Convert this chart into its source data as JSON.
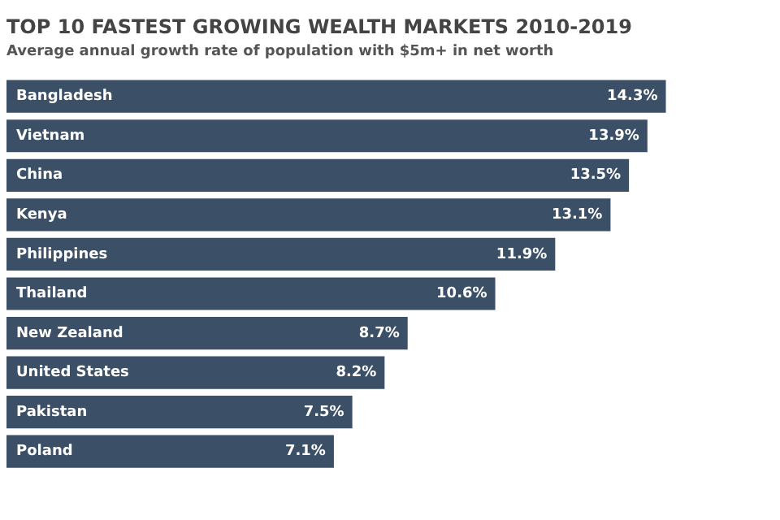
{
  "chart_data": {
    "type": "bar",
    "orientation": "horizontal",
    "title": "TOP 10 FASTEST GROWING WEALTH MARKETS 2010-2019",
    "subtitle": "Average annual growth rate of population with $5m+ in net worth",
    "categories": [
      "Bangladesh",
      "Vietnam",
      "China",
      "Kenya",
      "Philippines",
      "Thailand",
      "New Zealand",
      "United States",
      "Pakistan",
      "Poland"
    ],
    "values": [
      14.3,
      13.9,
      13.5,
      13.1,
      11.9,
      10.6,
      8.7,
      8.2,
      7.5,
      7.1
    ],
    "value_labels": [
      "14.3%",
      "13.9%",
      "13.5%",
      "13.1%",
      "11.9%",
      "10.6%",
      "8.7%",
      "8.2%",
      "7.5%",
      "7.1%"
    ],
    "color": "#3b4f66"
  }
}
